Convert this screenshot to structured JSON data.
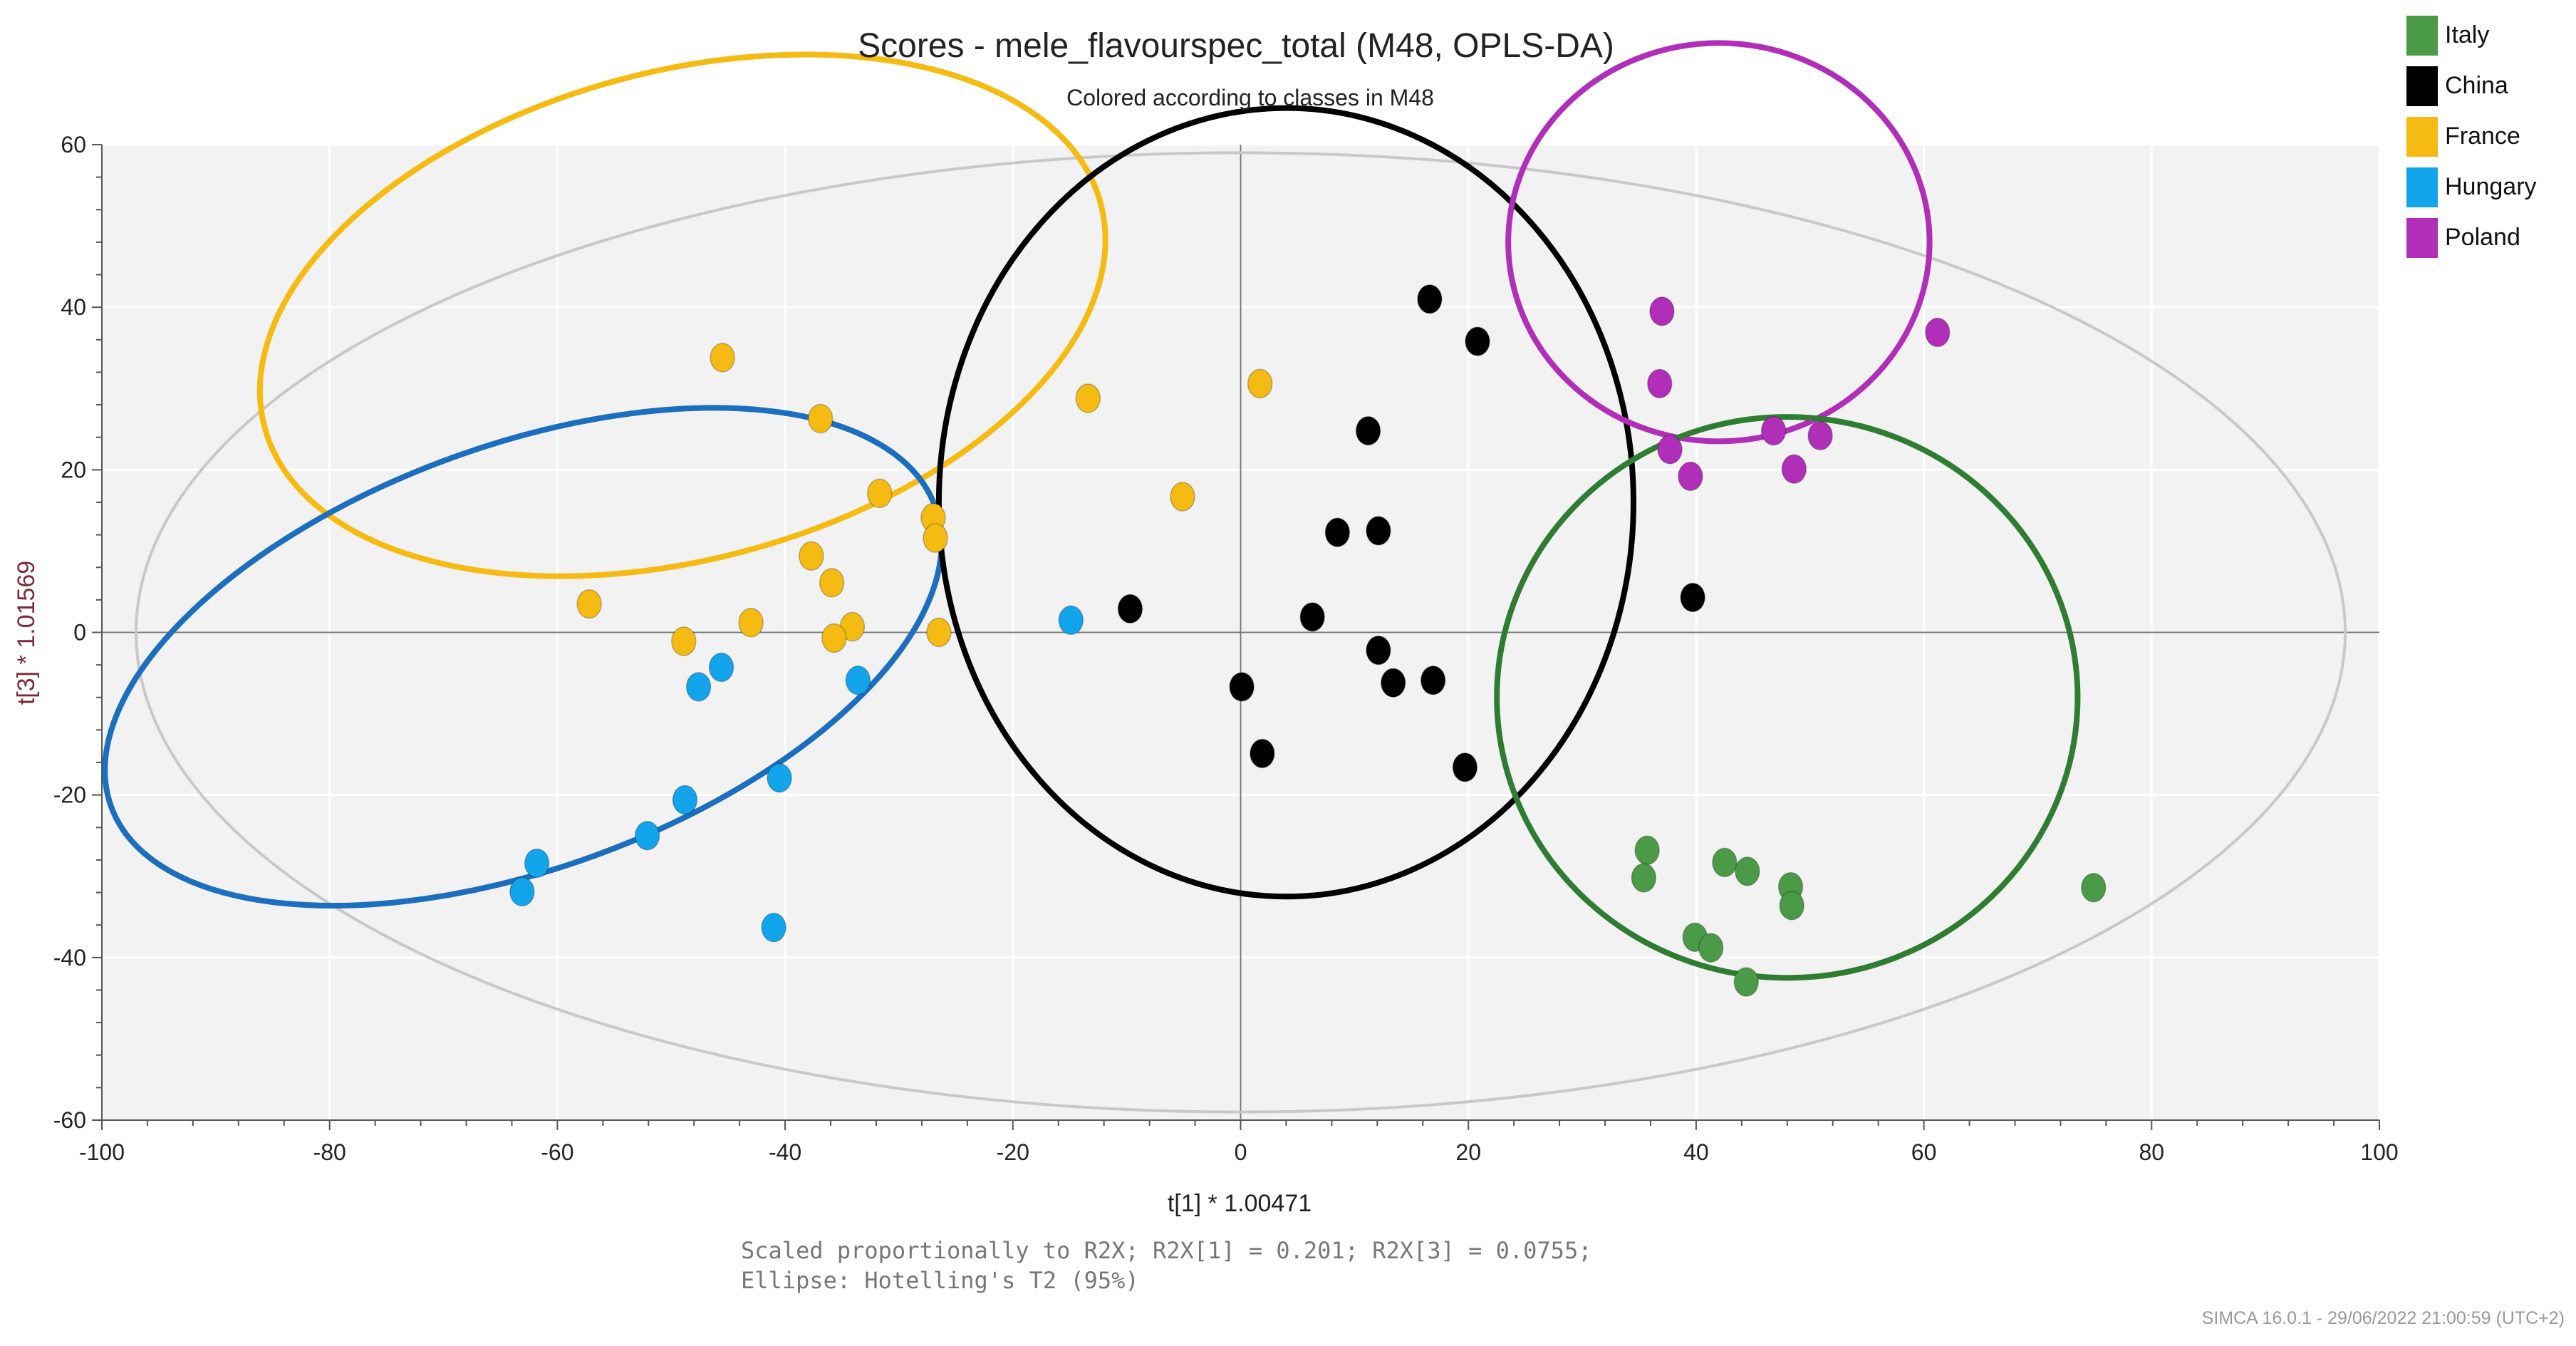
{
  "chart_data": {
    "type": "scatter",
    "title": "Scores - mele_flavourspec_total (M48, OPLS-DA)",
    "subtitle": "Colored according to classes in M48",
    "xlabel": "t[1] * 1.00471",
    "ylabel": "t[3] * 1.01569",
    "xlim": [
      -100,
      100
    ],
    "ylim": [
      -60,
      60
    ],
    "x_ticks": [
      -100,
      -80,
      -60,
      -40,
      -20,
      0,
      20,
      40,
      60,
      80,
      100
    ],
    "y_ticks": [
      -60,
      -40,
      -20,
      0,
      20,
      40,
      60
    ],
    "grid": true,
    "legend_position": "top-right",
    "series": [
      {
        "name": "Italy",
        "color": "#4a9a47",
        "points": [
          [
            35.7,
            -26.8
          ],
          [
            35.4,
            -30.2
          ],
          [
            39.9,
            -37.5
          ],
          [
            41.3,
            -38.8
          ],
          [
            42.5,
            -28.3
          ],
          [
            44.5,
            -29.4
          ],
          [
            44.4,
            -43.0
          ],
          [
            48.3,
            -31.3
          ],
          [
            48.4,
            -33.6
          ],
          [
            74.9,
            -31.4
          ]
        ]
      },
      {
        "name": "China",
        "color": "#000000",
        "points": [
          [
            16.6,
            41.0
          ],
          [
            20.8,
            35.8
          ],
          [
            11.2,
            24.8
          ],
          [
            8.5,
            12.3
          ],
          [
            12.1,
            12.5
          ],
          [
            -9.7,
            2.9
          ],
          [
            6.3,
            1.9
          ],
          [
            39.7,
            4.3
          ],
          [
            12.1,
            -2.2
          ],
          [
            0.1,
            -6.7
          ],
          [
            13.4,
            -6.2
          ],
          [
            16.9,
            -5.9
          ],
          [
            1.9,
            -14.9
          ],
          [
            19.7,
            -16.6
          ]
        ]
      },
      {
        "name": "France",
        "color": "#f5bb12",
        "points": [
          [
            -45.5,
            33.8
          ],
          [
            -36.9,
            26.3
          ],
          [
            -13.4,
            28.8
          ],
          [
            1.7,
            30.6
          ],
          [
            -31.7,
            17.1
          ],
          [
            -5.1,
            16.7
          ],
          [
            -27.0,
            14.1
          ],
          [
            -26.8,
            11.6
          ],
          [
            -37.7,
            9.4
          ],
          [
            -35.9,
            6.1
          ],
          [
            -57.2,
            3.5
          ],
          [
            -43.0,
            1.2
          ],
          [
            -34.1,
            0.7
          ],
          [
            -48.9,
            -1.1
          ],
          [
            -35.7,
            -0.7
          ],
          [
            -26.5,
            0.0
          ]
        ]
      },
      {
        "name": "Hungary",
        "color": "#12a5ec",
        "points": [
          [
            -14.9,
            1.5
          ],
          [
            -45.6,
            -4.3
          ],
          [
            -47.6,
            -6.7
          ],
          [
            -33.6,
            -5.9
          ],
          [
            -40.5,
            -17.9
          ],
          [
            -48.8,
            -20.6
          ],
          [
            -52.1,
            -25.0
          ],
          [
            -61.8,
            -28.4
          ],
          [
            -63.1,
            -31.9
          ],
          [
            -41.0,
            -36.3
          ]
        ]
      },
      {
        "name": "Poland",
        "color": "#b12fb8",
        "points": [
          [
            37.0,
            39.5
          ],
          [
            61.2,
            36.9
          ],
          [
            36.8,
            30.6
          ],
          [
            37.7,
            22.5
          ],
          [
            39.5,
            19.2
          ],
          [
            46.8,
            24.8
          ],
          [
            50.9,
            24.2
          ],
          [
            48.6,
            20.1
          ]
        ]
      }
    ],
    "overlays": [
      {
        "shape": "ellipse",
        "name": "hotelling-t2",
        "color": "#c8c8c8",
        "cx": 0,
        "cy": 0,
        "rx": 97,
        "ry": 59,
        "rotate": 0
      },
      {
        "shape": "ellipse",
        "name": "france-group",
        "color": "#f5bb12",
        "cx": -49,
        "cy": 39,
        "rx": 38,
        "ry": 30,
        "rotate": -15
      },
      {
        "shape": "ellipse",
        "name": "hungary-group",
        "color": "#1b6fbe",
        "cx": -63,
        "cy": -3,
        "rx": 38.5,
        "ry": 26,
        "rotate": -20
      },
      {
        "shape": "ellipse",
        "name": "china-group",
        "color": "#000000",
        "cx": 4,
        "cy": 16,
        "rx": 30.5,
        "ry": 48.5,
        "rotate": 0
      },
      {
        "shape": "ellipse",
        "name": "poland-group",
        "color": "#b12fb8",
        "cx": 42,
        "cy": 48,
        "rx": 18.5,
        "ry": 24.5,
        "rotate": 0
      },
      {
        "shape": "ellipse",
        "name": "italy-group",
        "color": "#2e7d32",
        "cx": 48,
        "cy": -8,
        "rx": 25.5,
        "ry": 34.5,
        "rotate": 0
      }
    ],
    "footnote": [
      "Scaled proportionally to R2X; R2X[1] = 0.201; R2X[3] = 0.0755;",
      "Ellipse: Hotelling's T2 (95%)"
    ],
    "stamp": "SIMCA 16.0.1 - 29/06/2022 21:00:59 (UTC+2)"
  }
}
